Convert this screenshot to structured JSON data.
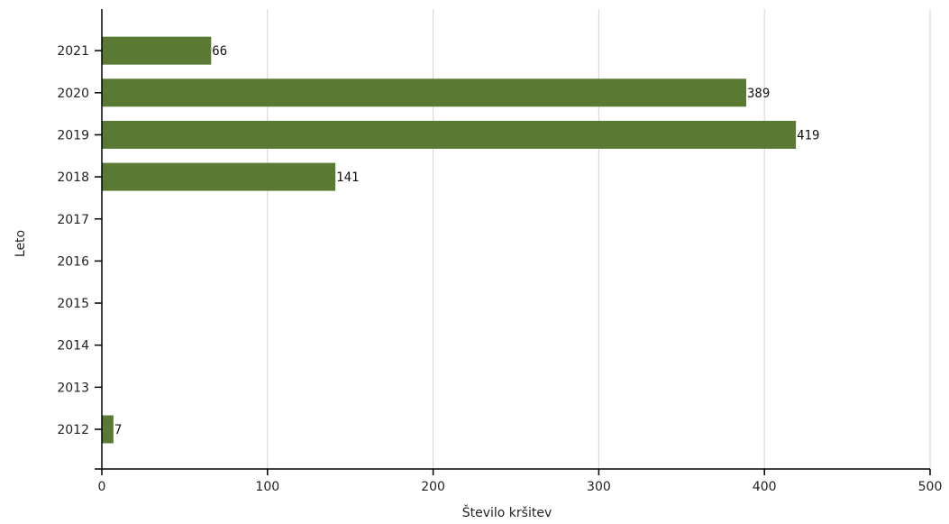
{
  "chart_data": {
    "type": "bar",
    "orientation": "horizontal",
    "categories": [
      "2012",
      "2013",
      "2014",
      "2015",
      "2016",
      "2017",
      "2018",
      "2019",
      "2020",
      "2021"
    ],
    "values": [
      7,
      null,
      null,
      null,
      null,
      null,
      141,
      419,
      389,
      66
    ],
    "data_labels": [
      "7",
      "",
      "",
      "",
      "",
      "",
      "141",
      "419",
      "389",
      "66"
    ],
    "xlabel": "Število kršitev",
    "ylabel": "Leto",
    "xlim": [
      0,
      500
    ],
    "x_ticks": [
      0,
      100,
      200,
      300,
      400,
      500
    ],
    "grid": "vertical",
    "bar_color": "#5a7a34"
  }
}
